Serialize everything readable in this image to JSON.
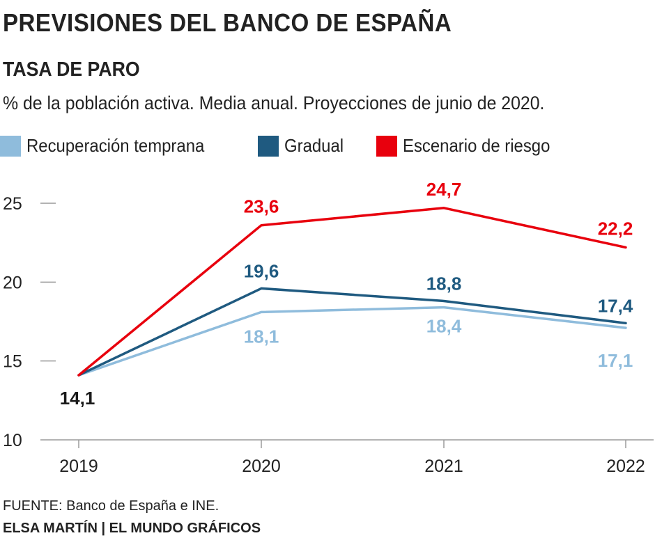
{
  "header": {
    "title": "PREVISIONES DEL BANCO DE ESPAÑA",
    "subtitle": "TASA DE PARO",
    "description": "% de la población activa. Media anual. Proyecciones de junio de 2020."
  },
  "footer": {
    "source": "FUENTE: Banco de España e INE.",
    "credit": "ELSA MARTÍN | EL MUNDO GRÁFICOS"
  },
  "chart_data": {
    "type": "line",
    "title": "TASA DE PARO",
    "x": [
      "2019",
      "2020",
      "2021",
      "2022"
    ],
    "ylim": [
      10,
      25
    ],
    "yticks": [
      10,
      15,
      20,
      25
    ],
    "grid": false,
    "legend_position": "top-left",
    "series": [
      {
        "name": "Recuperación temprana",
        "color": "#8fbcdc",
        "values": [
          14.1,
          18.1,
          18.4,
          17.1
        ],
        "labels": [
          "",
          "18,1",
          "18,4",
          "17,1"
        ]
      },
      {
        "name": "Gradual",
        "color": "#1f5a80",
        "values": [
          14.1,
          19.6,
          18.8,
          17.4
        ],
        "labels": [
          "",
          "19,6",
          "18,8",
          "17,4"
        ]
      },
      {
        "name": "Escenario de riesgo",
        "color": "#e8000d",
        "values": [
          14.1,
          23.6,
          24.7,
          22.2
        ],
        "labels": [
          "",
          "23,6",
          "24,7",
          "22,2"
        ]
      }
    ],
    "start_label": "14,1",
    "start_label_color": "#1a1a1a"
  }
}
